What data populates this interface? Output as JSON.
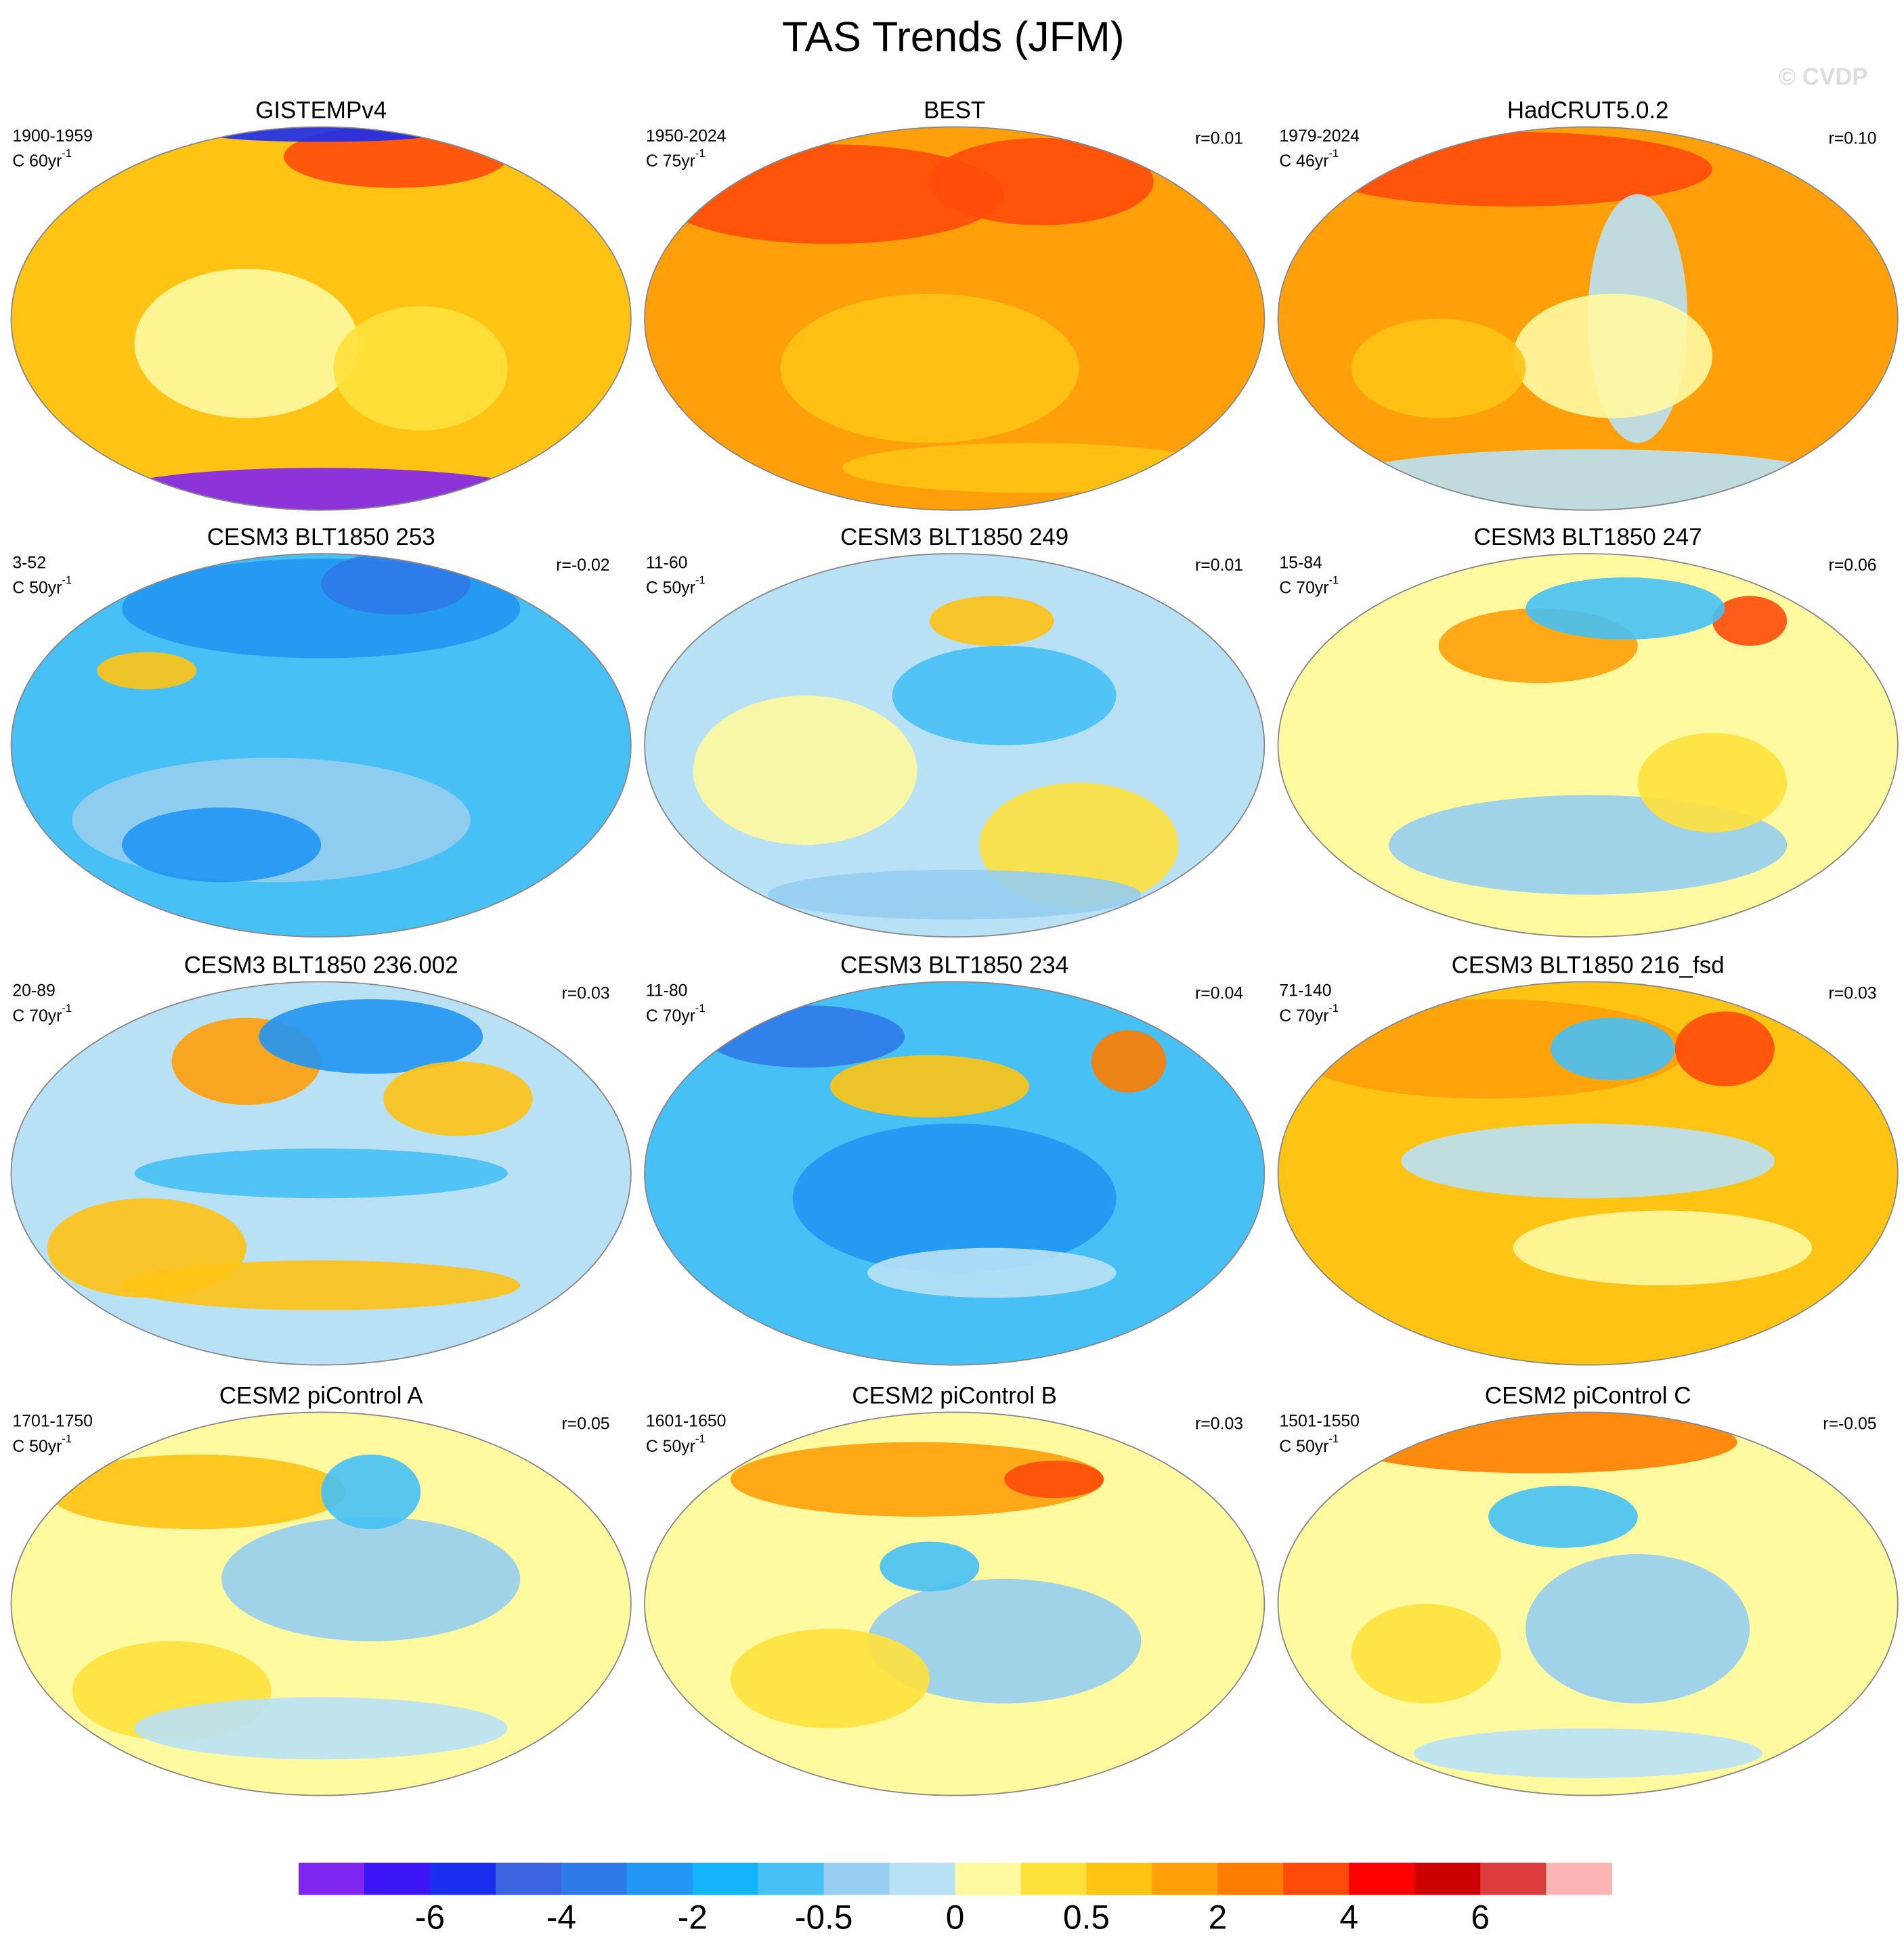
{
  "title": "TAS Trends (JFM)",
  "watermark": "© CVDP",
  "panels": [
    {
      "title": "GISTEMPv4",
      "period": "1900-1959",
      "units": "C 60yr",
      "exponent": "-1"
    },
    {
      "title": "BEST",
      "period": "1950-2024",
      "units": "C 75yr",
      "exponent": "-1",
      "r": "r=0.01"
    },
    {
      "title": "HadCRUT5.0.2",
      "period": "1979-2024",
      "units": "C 46yr",
      "exponent": "-1",
      "r": "r=0.10"
    },
    {
      "title": "CESM3 BLT1850 253",
      "period": "3-52",
      "units": "C 50yr",
      "exponent": "-1",
      "r": "r=-0.02"
    },
    {
      "title": "CESM3 BLT1850 249",
      "period": "11-60",
      "units": "C 50yr",
      "exponent": "-1",
      "r": "r=0.01"
    },
    {
      "title": "CESM3 BLT1850 247",
      "period": "15-84",
      "units": "C 70yr",
      "exponent": "-1",
      "r": "r=0.06"
    },
    {
      "title": "CESM3 BLT1850 236.002",
      "period": "20-89",
      "units": "C 70yr",
      "exponent": "-1",
      "r": "r=0.03"
    },
    {
      "title": "CESM3 BLT1850 234",
      "period": "11-80",
      "units": "C 70yr",
      "exponent": "-1",
      "r": "r=0.04"
    },
    {
      "title": "CESM3 BLT1850 216_fsd",
      "period": "71-140",
      "units": "C 70yr",
      "exponent": "-1",
      "r": "r=0.03"
    },
    {
      "title": "CESM2 piControl A",
      "period": "1701-1750",
      "units": "C 50yr",
      "exponent": "-1",
      "r": "r=0.05"
    },
    {
      "title": "CESM2 piControl B",
      "period": "1601-1650",
      "units": "C 50yr",
      "exponent": "-1",
      "r": "r=0.03"
    },
    {
      "title": "CESM2 piControl C",
      "period": "1501-1550",
      "units": "C 50yr",
      "exponent": "-1",
      "r": "r=-0.05"
    }
  ],
  "colorbar": {
    "colors": [
      "#7f25f0",
      "#3c14f5",
      "#1a2ef0",
      "#3c64e0",
      "#2e7ae8",
      "#2196f3",
      "#14b4fa",
      "#46c0f5",
      "#96cdf0",
      "#b9e1f5",
      "#fffaa0",
      "#ffe13c",
      "#ffc314",
      "#ffa00a",
      "#ff7d00",
      "#ff4b0a",
      "#ff0000",
      "#cd0000",
      "#dc3c3c",
      "#ffb4b4"
    ],
    "ticks": [
      -6,
      -4,
      -2,
      -0.5,
      0,
      0.5,
      2,
      4,
      6
    ]
  }
}
